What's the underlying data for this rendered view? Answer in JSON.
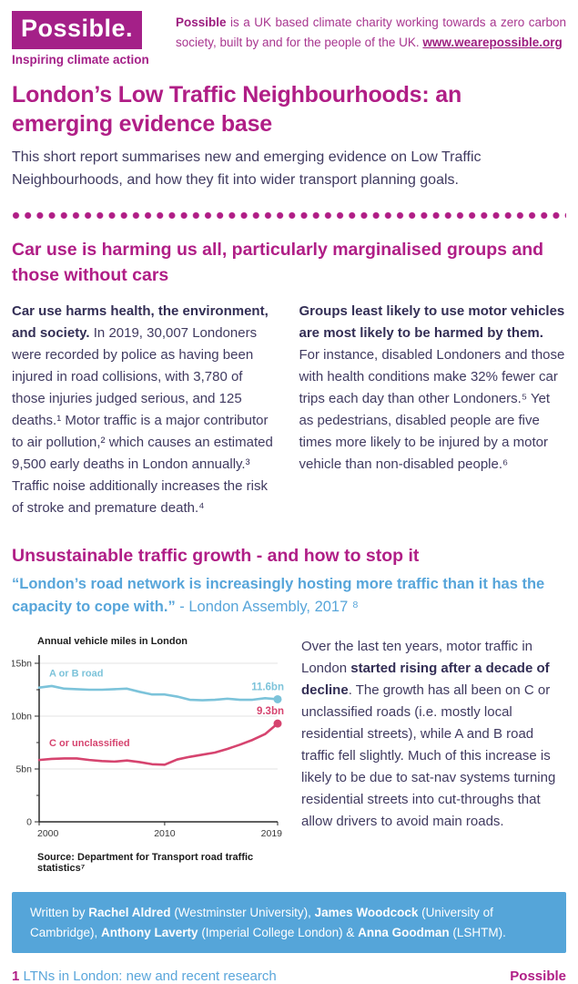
{
  "logo": {
    "text": "Possible.",
    "tagline": "Inspiring climate action"
  },
  "about": {
    "bold": "Possible",
    "text": " is a UK based climate charity working towards a zero carbon society, built by and for the people of the UK. ",
    "link": "www.wearepossible.org"
  },
  "title": "London’s Low Traffic Neighbourhoods: an emerging evidence base",
  "intro": "This short report summarises new and emerging evidence on Low Traffic Neighbourhoods, and how they fit into wider transport planning goals.",
  "section1": {
    "heading": "Car use is harming us all, particularly marginalised groups and those without cars",
    "col1": {
      "lead": "Car use harms health, the environment, and society.",
      "body": " In 2019, 30,007 Londoners were recorded by police as having been injured in road collisions, with 3,780 of those injuries judged serious, and 125 deaths.¹ Motor traffic is a major contributor to air pollution,² which causes an estimated 9,500 early deaths in London annually.³ Traffic noise additionally increases the risk of stroke and premature death.⁴"
    },
    "col2": {
      "lead": "Groups least likely to use motor vehicles are most likely to be harmed by them.",
      "body": " For instance, disabled Londoners and those with health conditions make 32% fewer car trips each day than other Londoners.⁵ Yet as pedestrians, disabled people are five times more likely to be injured by a motor vehicle than non-disabled people.⁶"
    }
  },
  "section2": {
    "heading": "Unsustainable traffic growth - and how to stop it",
    "quote": "“London’s road network is increasingly hosting more traffic than it has the capacity to cope with.”",
    "attribution": " - London Assembly, 2017 ⁸",
    "para_pre": "Over the last ten years, motor traffic in London ",
    "para_bold": "started rising after a decade of decline",
    "para_post": ". The growth has all been on C or unclassified roads (i.e. mostly local residential streets), while A and B road traffic fell slightly. Much of this increase is likely to be due to sat-nav systems turning residential streets into cut-throughs that allow drivers to avoid main roads."
  },
  "chart_data": {
    "type": "line",
    "title": "Annual vehicle miles in London",
    "source": "Source: Department for Transport road traffic statistics⁷",
    "x": [
      2000,
      2001,
      2002,
      2003,
      2004,
      2005,
      2006,
      2007,
      2008,
      2009,
      2010,
      2011,
      2012,
      2013,
      2014,
      2015,
      2016,
      2017,
      2018,
      2019
    ],
    "series": [
      {
        "name": "A or B road",
        "color": "#7cc3da",
        "end_label": "11.6bn",
        "values": [
          12.7,
          12.85,
          12.6,
          12.55,
          12.5,
          12.5,
          12.55,
          12.6,
          12.3,
          12.05,
          12.05,
          11.85,
          11.55,
          11.5,
          11.55,
          11.65,
          11.55,
          11.55,
          11.7,
          11.6
        ]
      },
      {
        "name": "C or unclassified",
        "color": "#d6446f",
        "end_label": "9.3bn",
        "values": [
          5.85,
          5.95,
          6.0,
          6.0,
          5.85,
          5.75,
          5.7,
          5.8,
          5.65,
          5.45,
          5.4,
          5.9,
          6.15,
          6.35,
          6.55,
          6.9,
          7.3,
          7.75,
          8.3,
          9.3
        ]
      }
    ],
    "ylim": [
      0,
      15
    ],
    "yticks": [
      {
        "value": 15,
        "label": "15bn"
      },
      {
        "value": 10,
        "label": "10bn"
      },
      {
        "value": 5,
        "label": "5bn"
      },
      {
        "value": 0,
        "label": "0"
      }
    ],
    "y_minor_ticks": [
      2.5,
      7.5,
      12.5
    ],
    "xticks": [
      {
        "value": 2000,
        "label": "2000"
      },
      {
        "value": 2010,
        "label": "2010"
      },
      {
        "value": 2019,
        "label": "2019"
      }
    ],
    "grid": true,
    "legend_position": "inline-labels"
  },
  "authors": {
    "prefix": "Written by ",
    "list": [
      {
        "name": "Rachel Aldred",
        "affil": " (Westminster University), "
      },
      {
        "name": "James Woodcock",
        "affil": " (University of Cambridge), "
      },
      {
        "name": "Anthony Laverty",
        "affil": " (Imperial College London) & "
      },
      {
        "name": "Anna Goodman",
        "affil": " (LSHTM)."
      }
    ]
  },
  "footer": {
    "page_number": "1",
    "left_text": " LTNs in London: new and recent research",
    "brand": "Possible"
  },
  "colors": {
    "brand_magenta": "#b01e86",
    "body_text": "#403a60",
    "light_blue": "#57a5da",
    "authors_box_blue": "#55a5d9",
    "chart_blue": "#7cc3da",
    "chart_pink": "#d6446f"
  }
}
